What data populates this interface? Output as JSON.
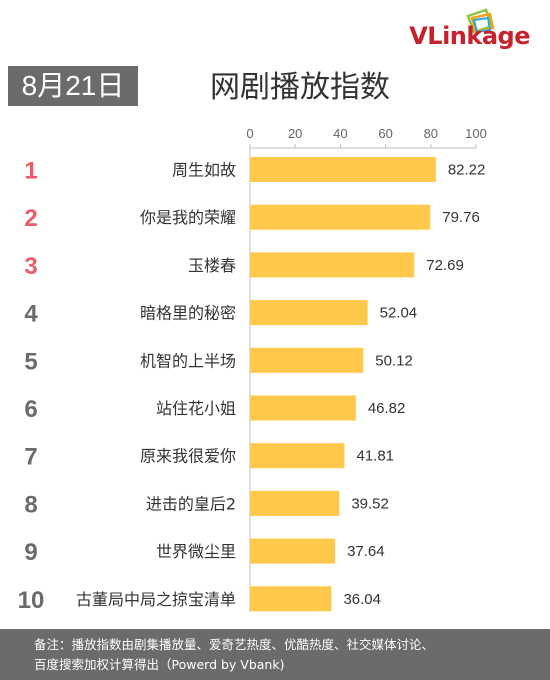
{
  "logo": {
    "text": "VLinkage",
    "colors": {
      "text": "#c9212b",
      "frame_green": "#8cc63f",
      "frame_orange": "#f7a21b",
      "frame_blue": "#29a8df"
    }
  },
  "date_badge": "8月21日",
  "title": "网剧播放指数",
  "footer": {
    "line1": "备注：播放指数由剧集播放量、爱奇艺热度、优酷热度、社交媒体讨论、",
    "line2": "百度搜索加权计算得出（Powerd by Vbank)"
  },
  "chart_data": {
    "type": "bar",
    "orientation": "horizontal",
    "title": "网剧播放指数",
    "ranks": [
      "1",
      "2",
      "3",
      "4",
      "5",
      "6",
      "7",
      "8",
      "9",
      "10"
    ],
    "categories": [
      "周生如故",
      "你是我的荣耀",
      "玉楼春",
      "暗格里的秘密",
      "机智的上半场",
      "站住花小姐",
      "原来我很爱你",
      "进击的皇后2",
      "世界微尘里",
      "古董局中局之掠宝清单"
    ],
    "values": [
      82.22,
      79.76,
      72.69,
      52.04,
      50.12,
      46.82,
      41.81,
      39.52,
      37.64,
      36.04
    ],
    "value_labels": [
      "82.22",
      "79.76",
      "72.69",
      "52.04",
      "50.12",
      "46.82",
      "41.81",
      "39.52",
      "37.64",
      "36.04"
    ],
    "xlim": [
      0,
      100
    ],
    "ticks": [
      "0",
      "20",
      "40",
      "60",
      "80",
      "100"
    ],
    "axis_position": "top",
    "grid": false,
    "colors": {
      "bar": "#ffc84a",
      "rank_top": "#f05a66",
      "rank_rest": "#6b6b6b",
      "axis": "#bfbfbf"
    }
  }
}
